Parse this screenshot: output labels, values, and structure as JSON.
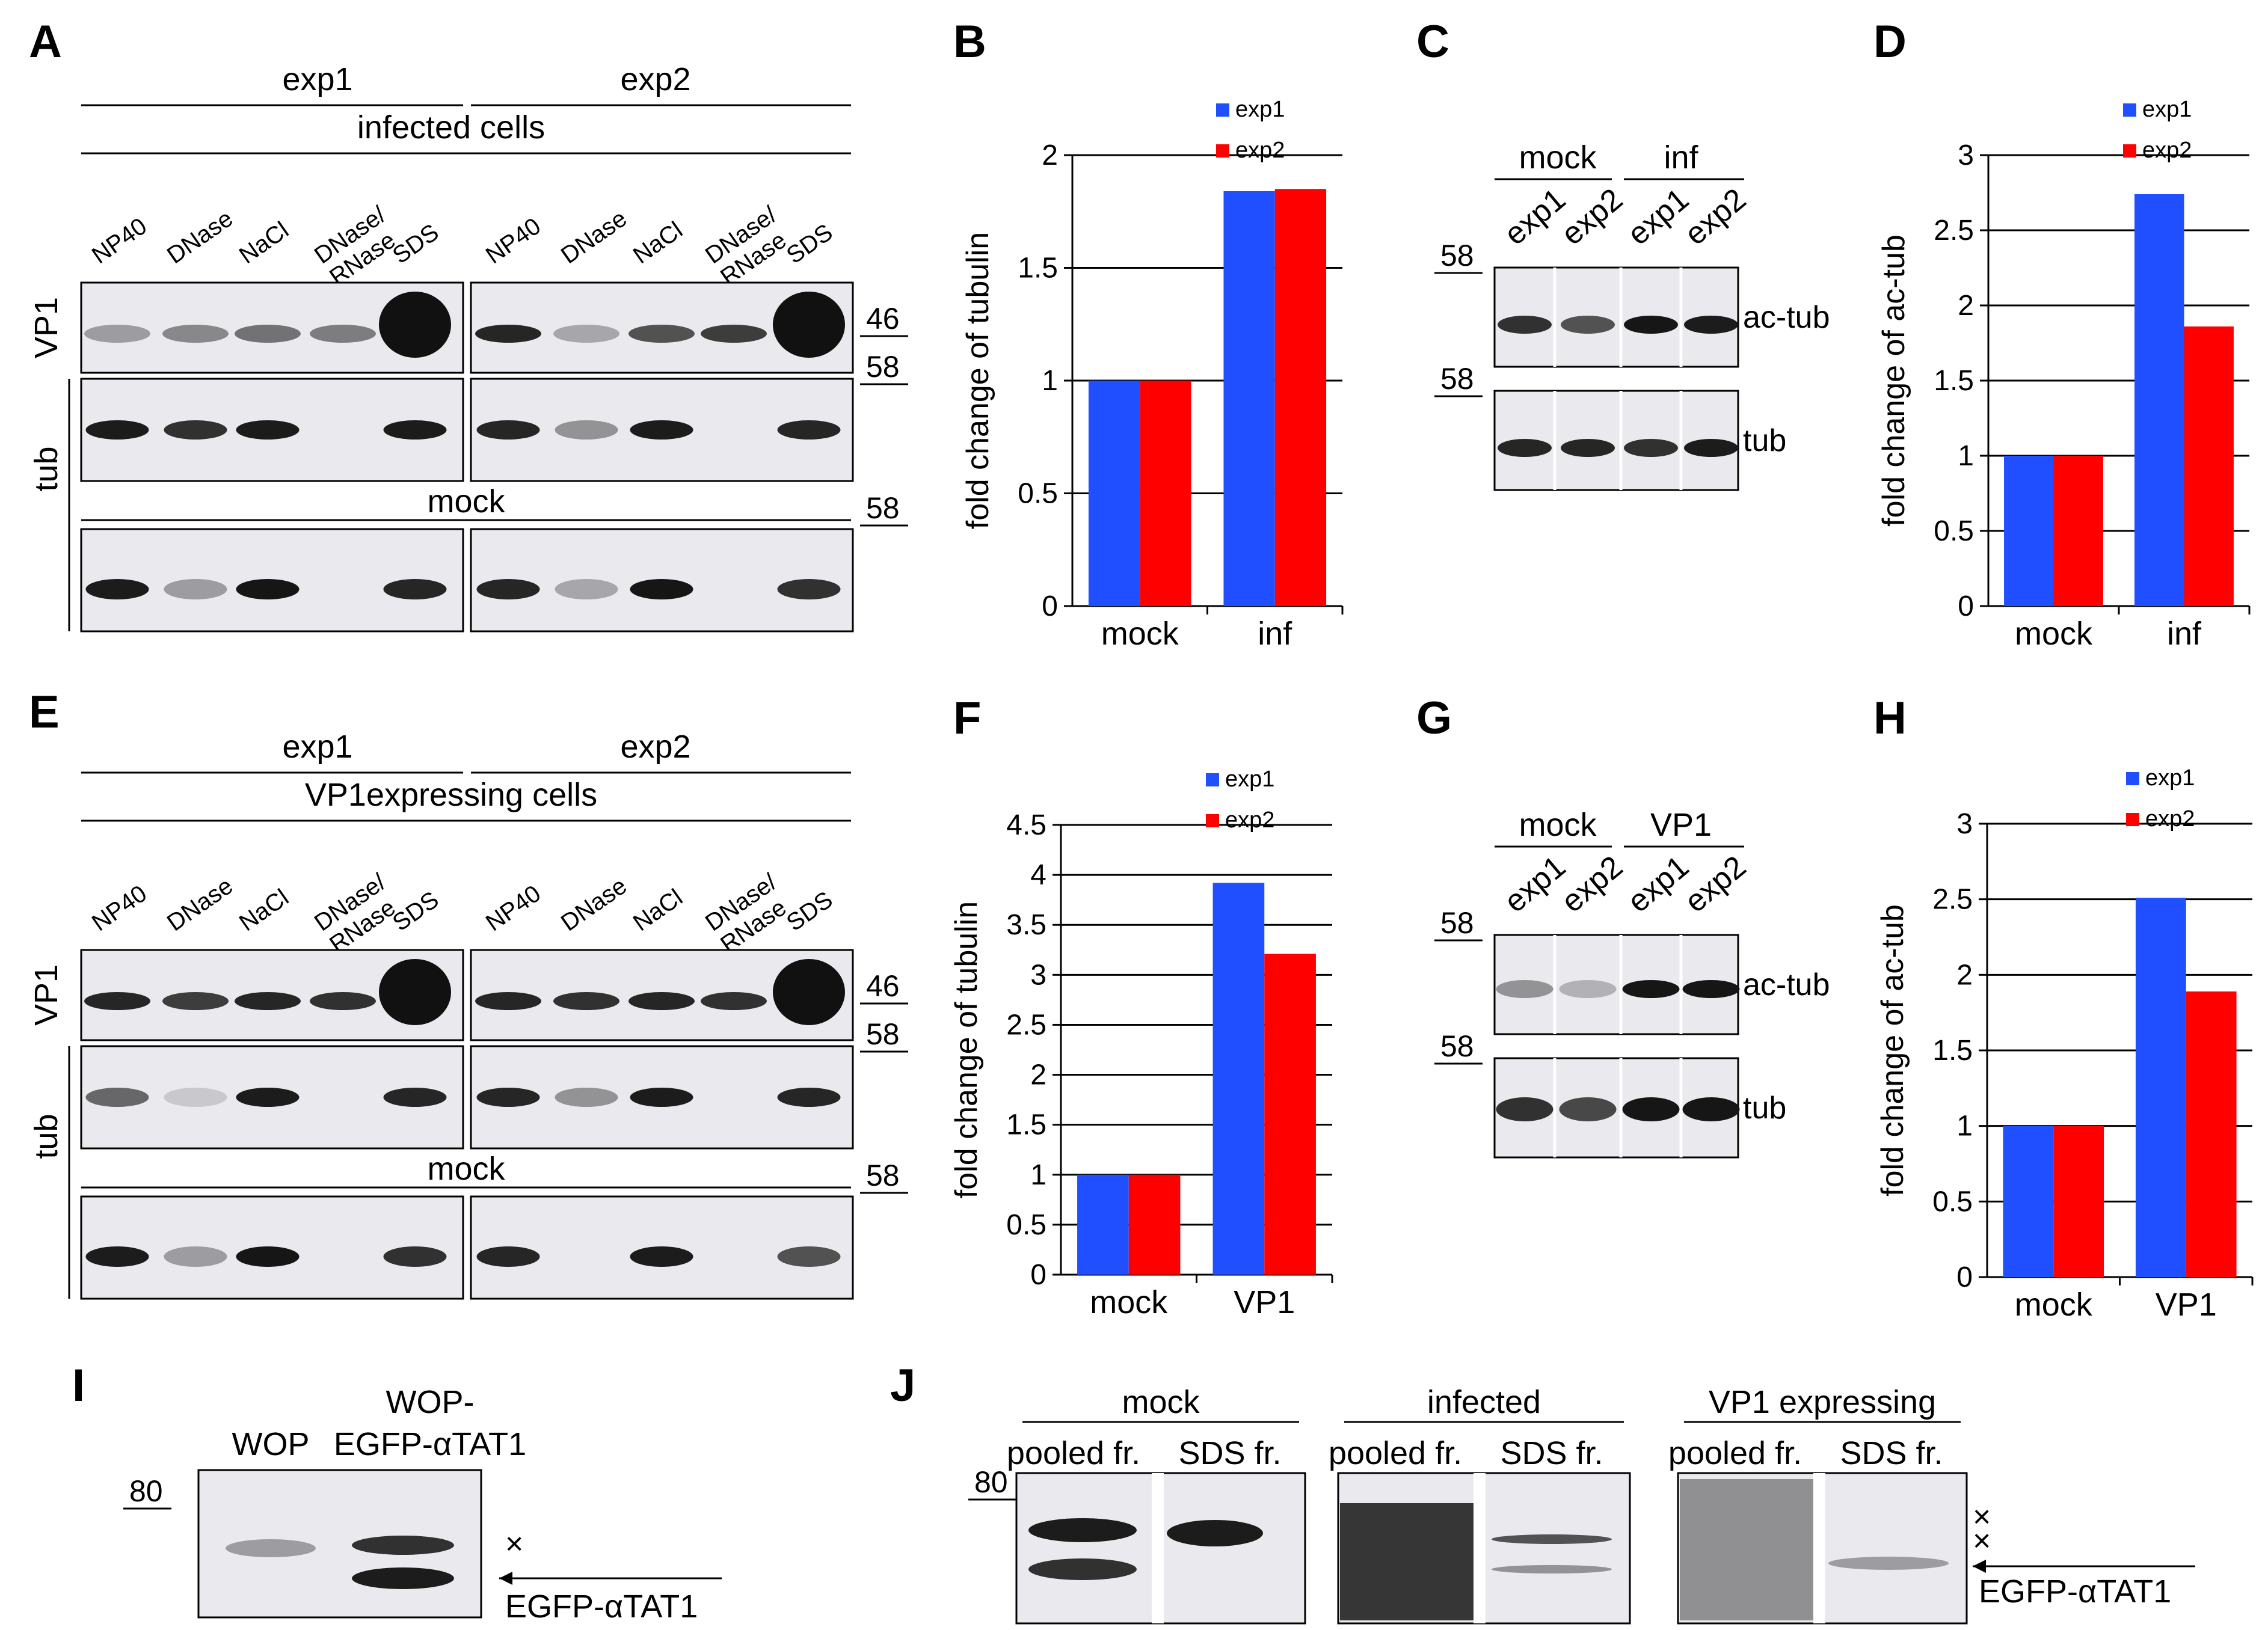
{
  "panels": {
    "A": "A",
    "B": "B",
    "C": "C",
    "D": "D",
    "E": "E",
    "F": "F",
    "G": "G",
    "H": "H",
    "I": "I",
    "J": "J"
  },
  "colors": {
    "exp1": "#1f4fff",
    "exp2": "#ff0000",
    "membrane": "#e9e9ee",
    "band": "#111111"
  },
  "blot_A": {
    "exp1": "exp1",
    "exp2": "exp2",
    "cells": "infected cells",
    "lanes": [
      "NP40",
      "DNase",
      "NaCl",
      "DNase/\nRNase",
      "SDS"
    ],
    "vp1": "VP1",
    "tub": "tub",
    "mock": "mock",
    "mw_46": "46",
    "mw_58": "58"
  },
  "blot_E": {
    "exp1": "exp1",
    "exp2": "exp2",
    "cells": "VP1expressing cells",
    "lanes": [
      "NP40",
      "DNase",
      "NaCl",
      "DNase/\nRNase",
      "SDS"
    ],
    "vp1": "VP1",
    "tub": "tub",
    "mock": "mock",
    "mw_46": "46",
    "mw_58": "58"
  },
  "blot_C": {
    "g1": "mock",
    "g2": "inf",
    "lanes": [
      "exp1",
      "exp2",
      "exp1",
      "exp2"
    ],
    "ac": "ac-tub",
    "tub": "tub",
    "mw": "58"
  },
  "blot_G": {
    "g1": "mock",
    "g2": "VP1",
    "lanes": [
      "exp1",
      "exp2",
      "exp1",
      "exp2"
    ],
    "ac": "ac-tub",
    "tub": "tub",
    "mw": "58"
  },
  "blot_I": {
    "l1": "WOP",
    "l2a": "WOP-",
    "l2b": "EGFP-αTAT1",
    "mw": "80",
    "arrow": "EGFP-αTAT1",
    "mark": "×"
  },
  "blot_J": {
    "groups": [
      "mock",
      "infected",
      "VP1 expressing"
    ],
    "pooled": "pooled fr.",
    "sds": "SDS fr.",
    "mw": "80",
    "arrow": "EGFP-αTAT1",
    "mark": "×"
  },
  "chart_data": [
    {
      "panel": "B",
      "type": "bar",
      "categories": [
        "mock",
        "inf"
      ],
      "series": [
        {
          "name": "exp1",
          "values": [
            1,
            1.84
          ]
        },
        {
          "name": "exp2",
          "values": [
            1,
            1.85
          ]
        }
      ],
      "ylabel": "fold change of tubulin",
      "ylim": [
        0,
        2
      ],
      "yticks": [
        "0",
        "0.5",
        "1",
        "1.5",
        "2"
      ],
      "grid": true,
      "legend": "top-right"
    },
    {
      "panel": "D",
      "type": "bar",
      "categories": [
        "mock",
        "inf"
      ],
      "series": [
        {
          "name": "exp1",
          "values": [
            1,
            2.74
          ]
        },
        {
          "name": "exp2",
          "values": [
            1,
            1.86
          ]
        }
      ],
      "ylabel": "fold change of ac-tub",
      "ylim": [
        0,
        3
      ],
      "yticks": [
        "0",
        "0.5",
        "1",
        "1.5",
        "2",
        "2.5",
        "3"
      ],
      "grid": true,
      "legend": "top-right"
    },
    {
      "panel": "F",
      "type": "bar",
      "categories": [
        "mock",
        "VP1"
      ],
      "series": [
        {
          "name": "exp1",
          "values": [
            1,
            3.92
          ]
        },
        {
          "name": "exp2",
          "values": [
            1,
            3.21
          ]
        }
      ],
      "ylabel": "fold change of tubulin",
      "ylim": [
        0,
        4.5
      ],
      "yticks": [
        "0",
        "0.5",
        "1",
        "1.5",
        "2",
        "2.5",
        "3",
        "3.5",
        "4",
        "4.5"
      ],
      "grid": true,
      "legend": "top-right"
    },
    {
      "panel": "H",
      "type": "bar",
      "categories": [
        "mock",
        "VP1"
      ],
      "series": [
        {
          "name": "exp1",
          "values": [
            1,
            2.51
          ]
        },
        {
          "name": "exp2",
          "values": [
            1,
            1.89
          ]
        }
      ],
      "ylabel": "fold change of ac-tub",
      "ylim": [
        0,
        3
      ],
      "yticks": [
        "0",
        "0.5",
        "1",
        "1.5",
        "2",
        "2.5",
        "3"
      ],
      "grid": true,
      "legend": "top-right"
    }
  ]
}
